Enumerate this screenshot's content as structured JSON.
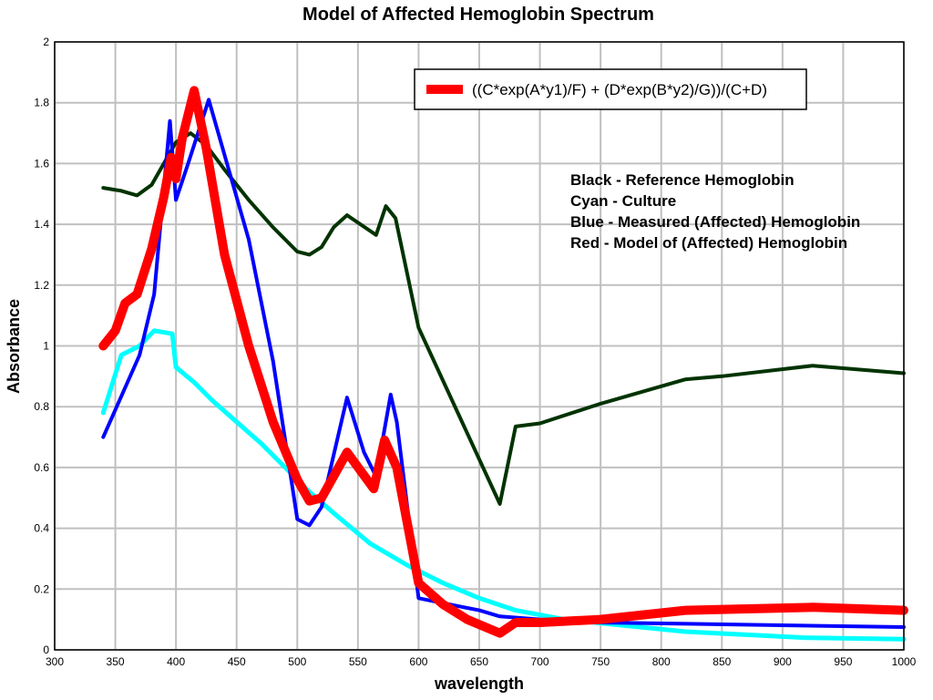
{
  "chart_data": {
    "type": "line",
    "title": "Model of Affected Hemoglobin Spectrum",
    "xlabel": "wavelength",
    "ylabel": "Absorbance",
    "xlim": [
      300,
      1000
    ],
    "ylim": [
      0,
      2
    ],
    "xticks": [
      300,
      350,
      400,
      450,
      500,
      550,
      600,
      650,
      700,
      750,
      800,
      850,
      900,
      950,
      1000
    ],
    "yticks": [
      "0",
      "0.2",
      "0.4",
      "0.6",
      "0.8",
      "1",
      "1.2",
      "1.4",
      "1.6",
      "1.8",
      "2"
    ],
    "grid": true,
    "legend": {
      "placement": "top-right",
      "entries": [
        {
          "label": "((C*exp(A*y1)/F) + (D*exp(B*y2)/G))/(C+D)",
          "color": "#ff0000"
        }
      ]
    },
    "annotations": [
      "Black - Reference Hemoglobin",
      "Cyan - Culture",
      "Blue - Measured (Affected) Hemoglobin",
      "Red - Model of (Affected) Hemoglobin"
    ],
    "series": [
      {
        "color": "#003300",
        "width": 4,
        "points": [
          [
            340,
            1.52
          ],
          [
            355,
            1.51
          ],
          [
            368,
            1.495
          ],
          [
            380,
            1.53
          ],
          [
            390,
            1.6
          ],
          [
            400,
            1.67
          ],
          [
            412,
            1.7
          ],
          [
            425,
            1.66
          ],
          [
            440,
            1.58
          ],
          [
            460,
            1.48
          ],
          [
            480,
            1.39
          ],
          [
            500,
            1.31
          ],
          [
            510,
            1.3
          ],
          [
            520,
            1.325
          ],
          [
            530,
            1.39
          ],
          [
            541,
            1.43
          ],
          [
            565,
            1.365
          ],
          [
            573,
            1.46
          ],
          [
            581,
            1.42
          ],
          [
            600,
            1.06
          ],
          [
            667,
            0.48
          ],
          [
            680,
            0.735
          ],
          [
            700,
            0.745
          ],
          [
            750,
            0.81
          ],
          [
            820,
            0.89
          ],
          [
            850,
            0.9
          ],
          [
            925,
            0.935
          ],
          [
            1000,
            0.91
          ]
        ]
      },
      {
        "color": "#00ffff",
        "width": 5,
        "points": [
          [
            340,
            0.78
          ],
          [
            355,
            0.97
          ],
          [
            370,
            1.0
          ],
          [
            382,
            1.05
          ],
          [
            397,
            1.04
          ],
          [
            400,
            0.93
          ],
          [
            415,
            0.88
          ],
          [
            430,
            0.82
          ],
          [
            450,
            0.75
          ],
          [
            470,
            0.68
          ],
          [
            490,
            0.6
          ],
          [
            510,
            0.52
          ],
          [
            530,
            0.45
          ],
          [
            560,
            0.35
          ],
          [
            590,
            0.28
          ],
          [
            620,
            0.22
          ],
          [
            650,
            0.17
          ],
          [
            680,
            0.13
          ],
          [
            720,
            0.1
          ],
          [
            820,
            0.06
          ],
          [
            920,
            0.04
          ],
          [
            1000,
            0.035
          ]
        ]
      },
      {
        "color": "#0000ff",
        "width": 4,
        "points": [
          [
            340,
            0.7
          ],
          [
            370,
            0.97
          ],
          [
            382,
            1.17
          ],
          [
            395,
            1.74
          ],
          [
            400,
            1.48
          ],
          [
            410,
            1.6
          ],
          [
            427,
            1.81
          ],
          [
            460,
            1.35
          ],
          [
            480,
            0.95
          ],
          [
            500,
            0.43
          ],
          [
            510,
            0.41
          ],
          [
            520,
            0.47
          ],
          [
            541,
            0.83
          ],
          [
            555,
            0.65
          ],
          [
            565,
            0.57
          ],
          [
            577,
            0.84
          ],
          [
            582,
            0.75
          ],
          [
            600,
            0.17
          ],
          [
            625,
            0.15
          ],
          [
            650,
            0.13
          ],
          [
            667,
            0.11
          ],
          [
            700,
            0.1
          ],
          [
            750,
            0.09
          ],
          [
            1000,
            0.075
          ]
        ]
      },
      {
        "color": "#ff0000",
        "width": 10,
        "points": [
          [
            340,
            1.0
          ],
          [
            350,
            1.05
          ],
          [
            358,
            1.14
          ],
          [
            368,
            1.17
          ],
          [
            380,
            1.32
          ],
          [
            390,
            1.49
          ],
          [
            396,
            1.62
          ],
          [
            400,
            1.55
          ],
          [
            405,
            1.68
          ],
          [
            415,
            1.84
          ],
          [
            425,
            1.65
          ],
          [
            440,
            1.3
          ],
          [
            460,
            1.0
          ],
          [
            480,
            0.75
          ],
          [
            500,
            0.56
          ],
          [
            510,
            0.49
          ],
          [
            520,
            0.5
          ],
          [
            541,
            0.65
          ],
          [
            563,
            0.53
          ],
          [
            572,
            0.69
          ],
          [
            582,
            0.6
          ],
          [
            600,
            0.22
          ],
          [
            620,
            0.15
          ],
          [
            640,
            0.1
          ],
          [
            667,
            0.055
          ],
          [
            680,
            0.09
          ],
          [
            700,
            0.09
          ],
          [
            750,
            0.1
          ],
          [
            820,
            0.13
          ],
          [
            925,
            0.14
          ],
          [
            1000,
            0.13
          ]
        ]
      }
    ]
  }
}
